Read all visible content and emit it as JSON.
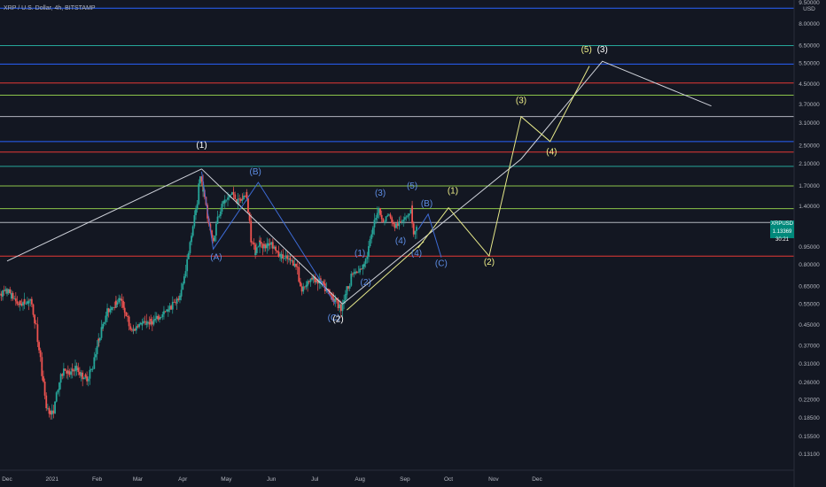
{
  "header": {
    "symbol_line": "XRP / U.S. Dollar, 4h, BITSTAMP"
  },
  "price_tag": {
    "ticker": "XRPUSD",
    "price": "1.13369",
    "countdown": "30:21"
  },
  "colors": {
    "background": "#131722",
    "axis_text": "#b2b5be",
    "candle_up": "#26a69a",
    "candle_down": "#ef5350",
    "white_lines": "#d1d4dc",
    "yellow_wave": "#e6e88a",
    "blue_wave": "#3d6bd6",
    "label_yellow": "#f0f08a",
    "label_blue": "#5e8ee6",
    "label_white": "#ffffff"
  },
  "chart_data": {
    "type": "candlestick",
    "scale": "log",
    "ylim": [
      0.11,
      9.5
    ],
    "x_tick_labels": [
      "Dec",
      "2021",
      "Feb",
      "Mar",
      "Apr",
      "May",
      "Jun",
      "Jul",
      "Aug",
      "Sep",
      "Oct",
      "Nov",
      "Dec"
    ],
    "x_tick_dates": [
      "2020-12-01",
      "2021-01-01",
      "2021-02-01",
      "2021-03-01",
      "2021-04-01",
      "2021-05-01",
      "2021-06-01",
      "2021-07-01",
      "2021-08-01",
      "2021-09-01",
      "2021-10-01",
      "2021-11-01",
      "2021-12-01"
    ],
    "y_tick_labels": [
      "9.50000",
      "8.00000",
      "6.50000",
      "5.50000",
      "4.50000",
      "3.70000",
      "3.10000",
      "2.50000",
      "2.10000",
      "1.70000",
      "1.40000",
      "1.13369",
      "0.95000",
      "0.80000",
      "0.65000",
      "0.55000",
      "0.45000",
      "0.37000",
      "0.31000",
      "0.26000",
      "0.22000",
      "0.18500",
      "0.15500",
      "0.13100"
    ],
    "y_unit": "USD",
    "horizontal_levels": [
      {
        "price": 9.3,
        "color": "#2962ff"
      },
      {
        "price": 6.5,
        "color": "#26a69a"
      },
      {
        "price": 5.45,
        "color": "#2962ff"
      },
      {
        "price": 4.55,
        "color": "#e53935"
      },
      {
        "price": 4.05,
        "color": "#8bc34a"
      },
      {
        "price": 3.3,
        "color": "#b2b5be"
      },
      {
        "price": 2.6,
        "color": "#2962ff"
      },
      {
        "price": 2.35,
        "color": "#e53935"
      },
      {
        "price": 2.05,
        "color": "#26a69a"
      },
      {
        "price": 1.7,
        "color": "#8bc34a"
      },
      {
        "price": 1.37,
        "color": "#8bc34a"
      },
      {
        "price": 1.2,
        "color": "#b2b5be"
      },
      {
        "price": 0.87,
        "color": "#e53935"
      }
    ],
    "price_path": [
      [
        "2020-11-25",
        0.6
      ],
      [
        "2020-12-03",
        0.62
      ],
      [
        "2020-12-10",
        0.55
      ],
      [
        "2020-12-18",
        0.57
      ],
      [
        "2020-12-22",
        0.45
      ],
      [
        "2020-12-25",
        0.33
      ],
      [
        "2020-12-29",
        0.21
      ],
      [
        "2021-01-02",
        0.19
      ],
      [
        "2021-01-06",
        0.24
      ],
      [
        "2021-01-10",
        0.3
      ],
      [
        "2021-01-14",
        0.28
      ],
      [
        "2021-01-18",
        0.3
      ],
      [
        "2021-01-22",
        0.28
      ],
      [
        "2021-01-26",
        0.27
      ],
      [
        "2021-01-30",
        0.3
      ],
      [
        "2021-02-02",
        0.37
      ],
      [
        "2021-02-06",
        0.45
      ],
      [
        "2021-02-10",
        0.52
      ],
      [
        "2021-02-14",
        0.55
      ],
      [
        "2021-02-18",
        0.58
      ],
      [
        "2021-02-22",
        0.5
      ],
      [
        "2021-02-26",
        0.42
      ],
      [
        "2021-03-02",
        0.45
      ],
      [
        "2021-03-08",
        0.46
      ],
      [
        "2021-03-14",
        0.47
      ],
      [
        "2021-03-20",
        0.5
      ],
      [
        "2021-03-26",
        0.55
      ],
      [
        "2021-03-31",
        0.58
      ],
      [
        "2021-04-04",
        0.75
      ],
      [
        "2021-04-08",
        1.05
      ],
      [
        "2021-04-12",
        1.4
      ],
      [
        "2021-04-14",
        1.88
      ],
      [
        "2021-04-17",
        1.55
      ],
      [
        "2021-04-20",
        1.2
      ],
      [
        "2021-04-23",
        1.0
      ],
      [
        "2021-04-26",
        1.25
      ],
      [
        "2021-04-30",
        1.45
      ],
      [
        "2021-05-03",
        1.5
      ],
      [
        "2021-05-06",
        1.6
      ],
      [
        "2021-05-10",
        1.45
      ],
      [
        "2021-05-13",
        1.5
      ],
      [
        "2021-05-16",
        1.6
      ],
      [
        "2021-05-19",
        1.05
      ],
      [
        "2021-05-22",
        0.9
      ],
      [
        "2021-05-25",
        1.0
      ],
      [
        "2021-05-29",
        0.95
      ],
      [
        "2021-06-02",
        1.0
      ],
      [
        "2021-06-07",
        0.88
      ],
      [
        "2021-06-12",
        0.85
      ],
      [
        "2021-06-16",
        0.83
      ],
      [
        "2021-06-20",
        0.78
      ],
      [
        "2021-06-23",
        0.62
      ],
      [
        "2021-06-27",
        0.68
      ],
      [
        "2021-07-01",
        0.7
      ],
      [
        "2021-07-06",
        0.68
      ],
      [
        "2021-07-10",
        0.63
      ],
      [
        "2021-07-15",
        0.58
      ],
      [
        "2021-07-20",
        0.53
      ],
      [
        "2021-07-24",
        0.62
      ],
      [
        "2021-07-28",
        0.74
      ],
      [
        "2021-08-01",
        0.74
      ],
      [
        "2021-08-05",
        0.8
      ],
      [
        "2021-08-09",
        1.0
      ],
      [
        "2021-08-12",
        1.18
      ],
      [
        "2021-08-15",
        1.38
      ],
      [
        "2021-08-18",
        1.2
      ],
      [
        "2021-08-22",
        1.3
      ],
      [
        "2021-08-26",
        1.15
      ],
      [
        "2021-08-30",
        1.2
      ],
      [
        "2021-09-02",
        1.28
      ],
      [
        "2021-09-05",
        1.3
      ],
      [
        "2021-09-07",
        1.4
      ],
      [
        "2021-09-08",
        1.05
      ],
      [
        "2021-09-10",
        1.12
      ]
    ],
    "trend_lines_white": [
      [
        [
          "2020-12-01",
          0.83
        ],
        [
          "2021-04-14",
          2.0
        ]
      ],
      [
        [
          "2021-04-14",
          2.0
        ],
        [
          "2021-07-20",
          0.55
        ]
      ],
      [
        [
          "2021-07-20",
          0.55
        ],
        [
          "2021-11-20",
          2.2
        ],
        [
          "2022-01-15",
          5.6
        ],
        [
          "2022-03-31",
          3.65
        ]
      ]
    ],
    "wave_path_yellow": [
      [
        [
          "2021-09-10",
          0.94
        ],
        [
          "2021-10-01",
          1.38
        ],
        [
          "2021-10-29",
          0.87
        ],
        [
          "2021-11-20",
          3.3
        ],
        [
          "2021-12-10",
          2.6
        ],
        [
          "2022-01-06",
          5.35
        ]
      ],
      [
        [
          "2021-07-23",
          0.52
        ],
        [
          "2021-09-14",
          1.0
        ]
      ]
    ],
    "wave_path_blue": [
      [
        [
          "2021-04-14",
          1.95
        ],
        [
          "2021-04-22",
          0.93
        ],
        [
          "2021-05-23",
          1.76
        ],
        [
          "2021-07-15",
          0.55
        ]
      ],
      [
        [
          "2021-09-10",
          1.12
        ],
        [
          "2021-09-17",
          1.3
        ],
        [
          "2021-09-26",
          0.86
        ]
      ]
    ],
    "labels": [
      {
        "text": "(1)",
        "date": "2021-04-14",
        "price": 2.45,
        "color": "white"
      },
      {
        "text": "(A)",
        "date": "2021-04-24",
        "price": 0.84,
        "color": "blue"
      },
      {
        "text": "(B)",
        "date": "2021-05-21",
        "price": 1.9,
        "color": "blue"
      },
      {
        "text": "(C)",
        "date": "2021-07-14",
        "price": 0.47,
        "color": "blue"
      },
      {
        "text": "(2)",
        "date": "2021-07-17",
        "price": 0.465,
        "color": "white"
      },
      {
        "text": "(1)",
        "date": "2021-08-01",
        "price": 0.87,
        "color": "blue"
      },
      {
        "text": "(2)",
        "date": "2021-08-05",
        "price": 0.66,
        "color": "blue"
      },
      {
        "text": "(3)",
        "date": "2021-08-15",
        "price": 1.55,
        "color": "blue"
      },
      {
        "text": "(4)",
        "date": "2021-08-29",
        "price": 0.98,
        "color": "blue"
      },
      {
        "text": "(5)",
        "date": "2021-09-06",
        "price": 1.66,
        "color": "blue"
      },
      {
        "text": "(B)",
        "date": "2021-09-16",
        "price": 1.4,
        "color": "blue"
      },
      {
        "text": "(4)",
        "date": "2021-09-09",
        "price": 0.87,
        "color": "blue"
      },
      {
        "text": "(C)",
        "date": "2021-09-26",
        "price": 0.79,
        "color": "blue"
      },
      {
        "text": "(1)",
        "date": "2021-10-04",
        "price": 1.58,
        "color": "yellow"
      },
      {
        "text": "(2)",
        "date": "2021-10-29",
        "price": 0.8,
        "color": "yellow"
      },
      {
        "text": "(3)",
        "date": "2021-11-20",
        "price": 3.75,
        "color": "yellow"
      },
      {
        "text": "(4)",
        "date": "2021-12-11",
        "price": 2.3,
        "color": "yellow"
      },
      {
        "text": "(5)",
        "date": "2022-01-04",
        "price": 6.1,
        "color": "yellow"
      },
      {
        "text": "(3)",
        "date": "2022-01-15",
        "price": 6.1,
        "color": "white"
      }
    ]
  }
}
